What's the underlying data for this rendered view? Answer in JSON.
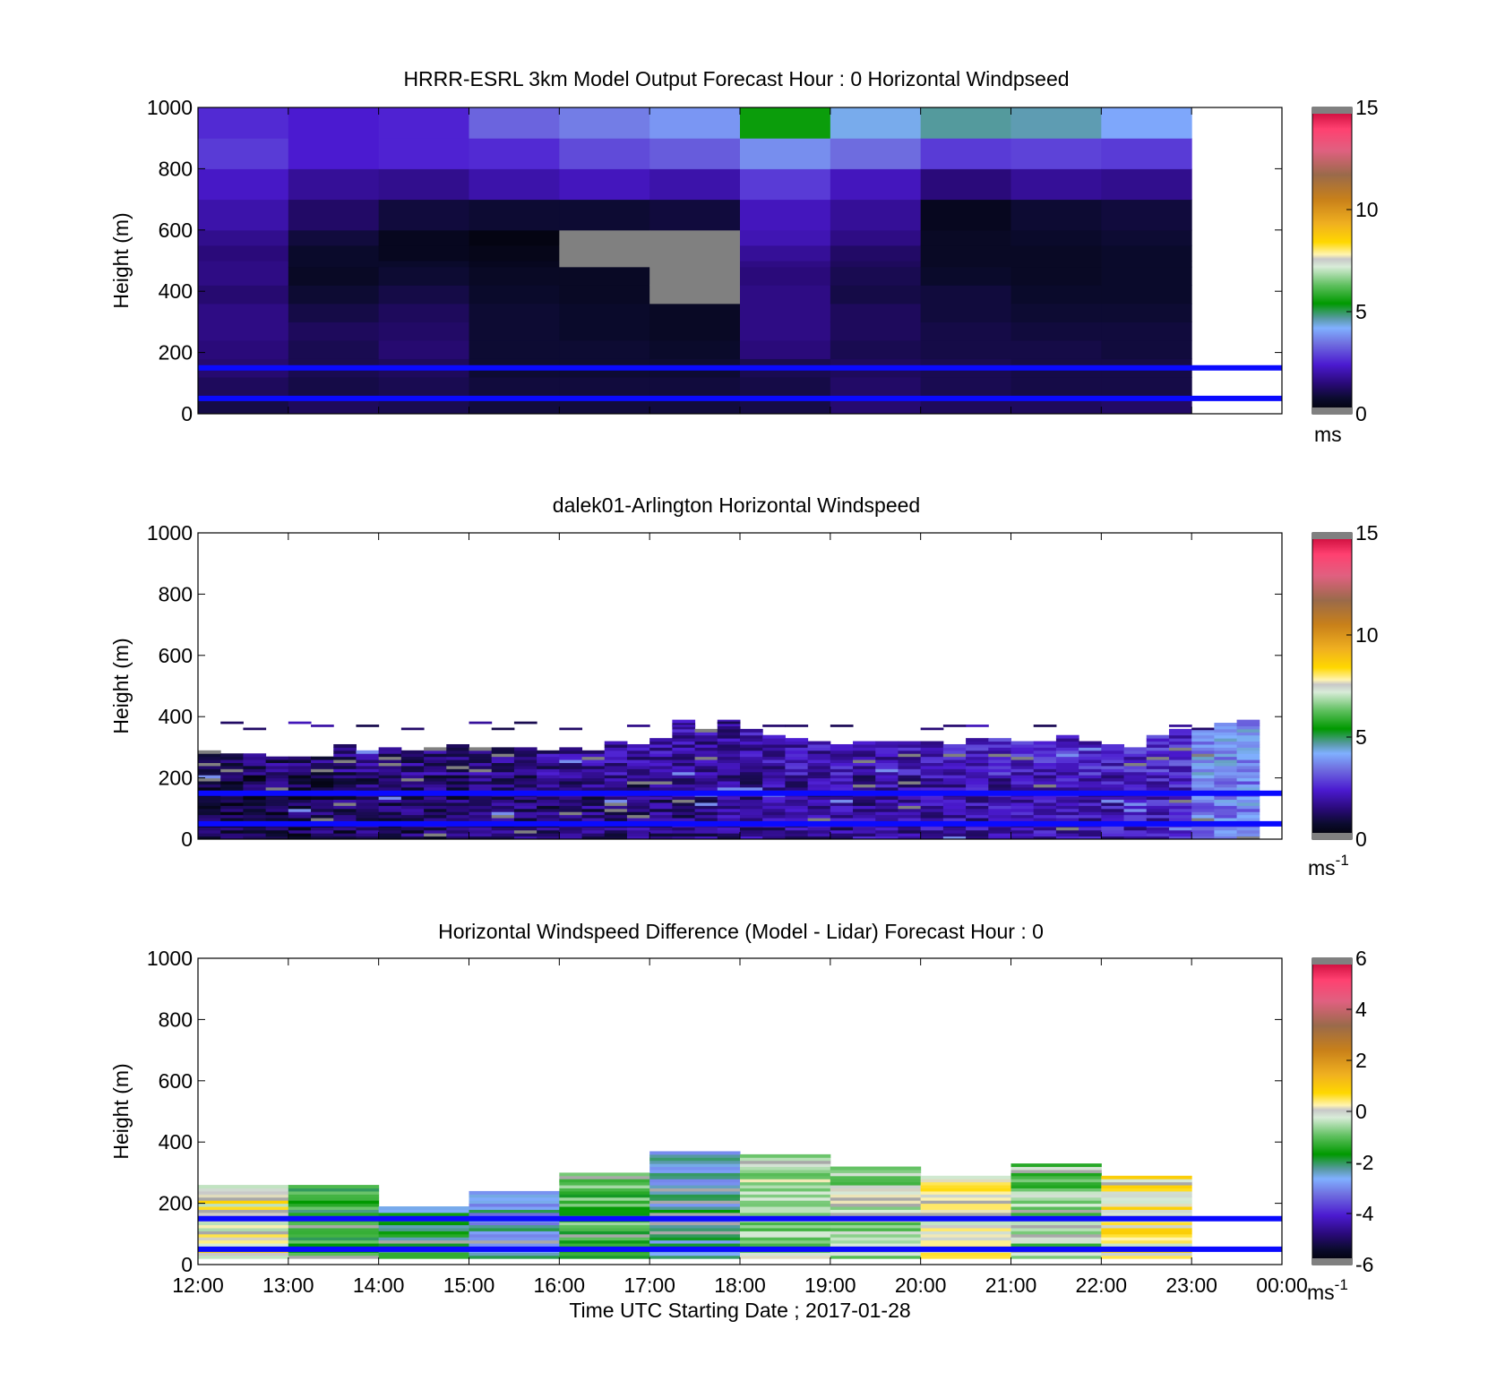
{
  "chart_data": [
    {
      "type": "heatmap",
      "title": "HRRR-ESRL 3km Model Output   Forecast Hour : 0 Horizontal Windpseed",
      "ylabel": "Height (m)",
      "xlabel": "",
      "xlim": [
        12,
        24
      ],
      "ylim": [
        0,
        1000
      ],
      "yticks": [
        "0",
        "200",
        "400",
        "600",
        "800",
        "1000"
      ],
      "xtick_labels_shown": false,
      "colorbar": {
        "range": [
          0,
          15
        ],
        "ticks": [
          "0",
          "5",
          "10",
          "15"
        ],
        "unit": "ms"
      },
      "reference_lines_m": [
        150,
        50
      ],
      "grid_y_edges": [
        0,
        60,
        120,
        180,
        240,
        300,
        360,
        420,
        480,
        500,
        550,
        600,
        700,
        800,
        900,
        1000
      ],
      "cell_values": [
        [
          1.0,
          1.2,
          1.4,
          1.5,
          1.6,
          1.6,
          1.4,
          1.6,
          1.6,
          1.5,
          1.7,
          2.0,
          2.3,
          2.8,
          2.6
        ],
        [
          1.2,
          1.0,
          1.1,
          1.1,
          1.2,
          1.0,
          0.8,
          0.6,
          0.7,
          0.7,
          0.9,
          1.3,
          1.8,
          2.4,
          2.4
        ],
        [
          1.1,
          1.1,
          1.2,
          1.4,
          1.3,
          1.2,
          1.0,
          0.8,
          0.7,
          0.5,
          0.5,
          0.9,
          1.7,
          2.5,
          2.5
        ],
        [
          0.9,
          0.9,
          0.8,
          0.8,
          0.8,
          0.8,
          0.7,
          0.6,
          0.5,
          0.4,
          0.3,
          0.8,
          2.0,
          2.6,
          3.3
        ],
        [
          0.9,
          0.9,
          0.8,
          0.8,
          0.7,
          0.7,
          0.6,
          0.6,
          -1,
          -1,
          -1,
          0.8,
          2.2,
          3.0,
          3.6
        ],
        [
          0.9,
          0.9,
          0.8,
          0.7,
          0.6,
          0.6,
          -1,
          -1,
          -1,
          -1,
          -1,
          0.9,
          2.0,
          3.2,
          3.9
        ],
        [
          1.0,
          1.0,
          1.1,
          1.5,
          1.6,
          1.6,
          1.6,
          1.5,
          1.6,
          1.8,
          2.1,
          2.2,
          2.8,
          3.8,
          5.5
        ],
        [
          1.4,
          1.3,
          1.2,
          1.1,
          1.2,
          1.2,
          1.0,
          1.1,
          1.2,
          1.3,
          1.6,
          1.8,
          2.2,
          3.4,
          4.3
        ],
        [
          1.2,
          1.1,
          1.1,
          1.0,
          1.0,
          0.9,
          0.9,
          0.7,
          0.6,
          0.6,
          0.6,
          0.5,
          1.5,
          2.8,
          4.7
        ],
        [
          1.2,
          1.0,
          1.0,
          1.0,
          0.9,
          0.8,
          0.7,
          0.6,
          0.6,
          0.6,
          0.7,
          0.8,
          1.8,
          2.9,
          4.6
        ],
        [
          1.3,
          1.0,
          1.0,
          0.9,
          0.9,
          0.8,
          0.7,
          0.7,
          0.7,
          0.7,
          0.8,
          0.9,
          1.7,
          2.8,
          4.1
        ]
      ]
    },
    {
      "type": "heatmap",
      "title": "dalek01-Arlington  Horizontal Windspeed",
      "ylabel": "Height (m)",
      "xlabel": "",
      "xlim": [
        12,
        24
      ],
      "ylim": [
        0,
        1000
      ],
      "yticks": [
        "0",
        "200",
        "400",
        "600",
        "800",
        "1000"
      ],
      "xtick_labels_shown": false,
      "colorbar": {
        "range": [
          0,
          15
        ],
        "ticks": [
          "0",
          "5",
          "10",
          "15"
        ],
        "unit": "ms",
        "unit_exp": "-1"
      },
      "reference_lines_m": [
        150,
        50
      ],
      "data_coverage_top_m": [
        280,
        270,
        290,
        300,
        285,
        300,
        320,
        370,
        340,
        315,
        305,
        315,
        330,
        310,
        345,
        370
      ],
      "time_step_h": 0.25,
      "speed_range_ms": [
        0.3,
        4.5
      ]
    },
    {
      "type": "heatmap",
      "title": "Horizontal Windspeed Difference (Model - Lidar) Forecast Hour : 0",
      "ylabel": "Height (m)",
      "xlabel": "Time UTC  Starting Date ; 2017-01-28",
      "xlim": [
        12,
        24
      ],
      "ylim": [
        0,
        1000
      ],
      "yticks": [
        "0",
        "200",
        "400",
        "600",
        "800",
        "1000"
      ],
      "xticks": [
        "12:00",
        "13:00",
        "14:00",
        "15:00",
        "16:00",
        "17:00",
        "18:00",
        "19:00",
        "20:00",
        "21:00",
        "22:00",
        "23:00",
        "00:00"
      ],
      "colorbar": {
        "range": [
          -6,
          6
        ],
        "ticks": [
          "-6",
          "-4",
          "-2",
          "0",
          "2",
          "4",
          "6"
        ],
        "unit": "ms",
        "unit_exp": "-1"
      },
      "reference_lines_m": [
        150,
        50
      ],
      "column_top_m": [
        260,
        255,
        185,
        235,
        295,
        365,
        360,
        315,
        290,
        325,
        290
      ],
      "column_mean_diff_ms": [
        0.2,
        -1.5,
        -2.0,
        -2.6,
        -1.2,
        -2.4,
        -0.5,
        -0.5,
        0.2,
        -0.8,
        0.3
      ]
    }
  ]
}
